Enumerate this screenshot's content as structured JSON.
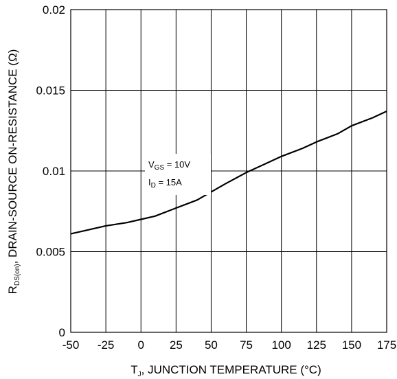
{
  "chart_data": {
    "type": "line",
    "xlabel": {
      "prefix": "T",
      "sub": "J",
      "rest": ", JUNCTION TEMPERATURE (°C)"
    },
    "ylabel": {
      "prefix": "R",
      "sub": "DS(on)",
      "rest": ", DRAIN-SOURCE ON-RESISTANCE (Ω)"
    },
    "xlim": [
      -50,
      175
    ],
    "ylim": [
      0,
      0.02
    ],
    "x_ticks": [
      -50,
      -25,
      0,
      25,
      50,
      75,
      100,
      125,
      150,
      175
    ],
    "x_tick_labels": [
      "-50",
      "-25",
      "0",
      "25",
      "50",
      "75",
      "100",
      "125",
      "150",
      "175"
    ],
    "y_ticks": [
      0,
      0.005,
      0.01,
      0.015,
      0.02
    ],
    "y_tick_labels": [
      "0",
      "0.005",
      "0.01",
      "0.015",
      "0.02"
    ],
    "grid": true,
    "series": [
      {
        "x": [
          -50,
          -40,
          -25,
          -10,
          0,
          10,
          25,
          40,
          50,
          60,
          75,
          90,
          100,
          115,
          125,
          140,
          150,
          165,
          175
        ],
        "y": [
          0.0061,
          0.0063,
          0.0066,
          0.0068,
          0.007,
          0.0072,
          0.0077,
          0.0082,
          0.0087,
          0.0092,
          0.0099,
          0.0105,
          0.0109,
          0.0114,
          0.0118,
          0.0123,
          0.0128,
          0.0133,
          0.0137
        ]
      }
    ],
    "annotation": {
      "line1": {
        "main": "V",
        "sub": "GS",
        "rest": " = 10V"
      },
      "line2": {
        "main": "I",
        "sub": "D",
        "rest": " = 15A"
      }
    },
    "colors": {
      "line": "#000000",
      "grid": "#000000",
      "background": "#ffffff"
    }
  }
}
